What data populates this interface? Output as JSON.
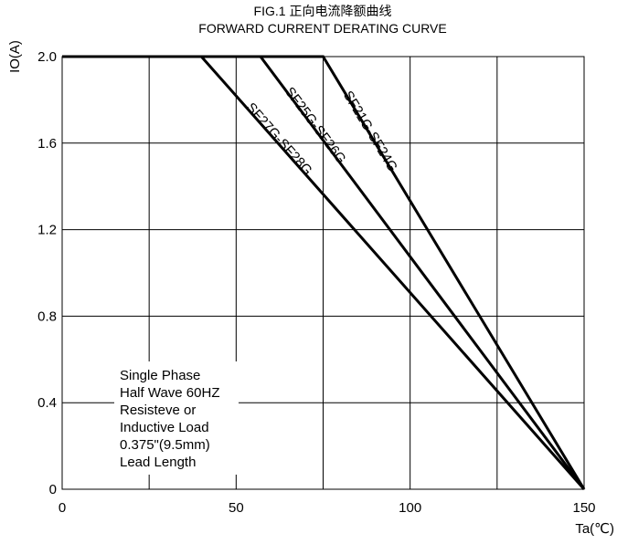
{
  "chart_data": {
    "type": "line",
    "title": "FIG.1     正向电流降额曲线",
    "subtitle": "FORWARD CURRENT  DERATING CURVE",
    "xlabel": "Ta(℃)",
    "ylabel": "IO(A)",
    "xlim": [
      0,
      150
    ],
    "ylim": [
      0,
      2.0
    ],
    "x_ticks": [
      "0",
      "50",
      "100",
      "150"
    ],
    "y_ticks": [
      "0",
      "0.4",
      "0.8",
      "1.2",
      "1.6",
      "2.0"
    ],
    "grid": true,
    "series": [
      {
        "name": "SF21G-SF24G",
        "x": [
          0,
          75,
          150
        ],
        "y": [
          2.0,
          2.0,
          0
        ]
      },
      {
        "name": "SF25G-SF26G",
        "x": [
          0,
          57,
          150
        ],
        "y": [
          2.0,
          2.0,
          0
        ]
      },
      {
        "name": "SF27G-SF28G",
        "x": [
          0,
          40,
          150
        ],
        "y": [
          2.0,
          2.0,
          0
        ]
      }
    ],
    "annotation_lines": [
      "Single Phase",
      "Half Wave 60HZ",
      "Resisteve or",
      "Inductive Load",
      "0.375\"(9.5mm)",
      "Lead Length"
    ]
  }
}
